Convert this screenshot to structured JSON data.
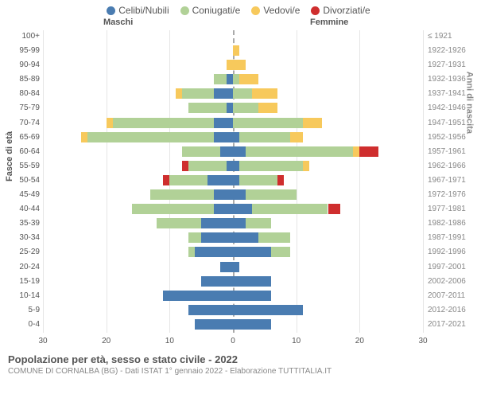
{
  "chart": {
    "type": "population-pyramid",
    "legend": [
      {
        "label": "Celibi/Nubili",
        "color": "#4a7cb1"
      },
      {
        "label": "Coniugati/e",
        "color": "#b1d197"
      },
      {
        "label": "Vedovi/e",
        "color": "#f7c95c"
      },
      {
        "label": "Divorziati/e",
        "color": "#cf2e2e"
      }
    ],
    "top_labels": {
      "left": "Maschi",
      "right": "Femmine"
    },
    "x_axis": {
      "title": "",
      "min": -30,
      "max": 30,
      "ticks": [
        30,
        20,
        10,
        0,
        10,
        20,
        30
      ]
    },
    "y_axis_left_title": "Fasce di età",
    "y_axis_right_title": "Anni di nascita",
    "background_color": "#ffffff",
    "grid_color": "#e5e5e5",
    "center_line_color": "#aaaaaa",
    "rows": [
      {
        "age": "100+",
        "year": "≤ 1921",
        "m": {
          "cel": 0,
          "con": 0,
          "ved": 0,
          "div": 0
        },
        "f": {
          "cel": 0,
          "con": 0,
          "ved": 0,
          "div": 0
        }
      },
      {
        "age": "95-99",
        "year": "1922-1926",
        "m": {
          "cel": 0,
          "con": 0,
          "ved": 0,
          "div": 0
        },
        "f": {
          "cel": 0,
          "con": 0,
          "ved": 1,
          "div": 0
        }
      },
      {
        "age": "90-94",
        "year": "1927-1931",
        "m": {
          "cel": 0,
          "con": 0,
          "ved": 1,
          "div": 0
        },
        "f": {
          "cel": 0,
          "con": 0,
          "ved": 2,
          "div": 0
        }
      },
      {
        "age": "85-89",
        "year": "1932-1936",
        "m": {
          "cel": 1,
          "con": 2,
          "ved": 0,
          "div": 0
        },
        "f": {
          "cel": 0,
          "con": 1,
          "ved": 3,
          "div": 0
        }
      },
      {
        "age": "80-84",
        "year": "1937-1941",
        "m": {
          "cel": 3,
          "con": 5,
          "ved": 1,
          "div": 0
        },
        "f": {
          "cel": 0,
          "con": 3,
          "ved": 4,
          "div": 0
        }
      },
      {
        "age": "75-79",
        "year": "1942-1946",
        "m": {
          "cel": 1,
          "con": 6,
          "ved": 0,
          "div": 0
        },
        "f": {
          "cel": 0,
          "con": 4,
          "ved": 3,
          "div": 0
        }
      },
      {
        "age": "70-74",
        "year": "1947-1951",
        "m": {
          "cel": 3,
          "con": 16,
          "ved": 1,
          "div": 0
        },
        "f": {
          "cel": 0,
          "con": 11,
          "ved": 3,
          "div": 0
        }
      },
      {
        "age": "65-69",
        "year": "1952-1956",
        "m": {
          "cel": 3,
          "con": 20,
          "ved": 1,
          "div": 0
        },
        "f": {
          "cel": 1,
          "con": 8,
          "ved": 2,
          "div": 0
        }
      },
      {
        "age": "60-64",
        "year": "1957-1961",
        "m": {
          "cel": 2,
          "con": 6,
          "ved": 0,
          "div": 0
        },
        "f": {
          "cel": 2,
          "con": 17,
          "ved": 1,
          "div": 3
        }
      },
      {
        "age": "55-59",
        "year": "1962-1966",
        "m": {
          "cel": 1,
          "con": 6,
          "ved": 0,
          "div": 1
        },
        "f": {
          "cel": 1,
          "con": 10,
          "ved": 1,
          "div": 0
        }
      },
      {
        "age": "50-54",
        "year": "1967-1971",
        "m": {
          "cel": 4,
          "con": 6,
          "ved": 0,
          "div": 1
        },
        "f": {
          "cel": 1,
          "con": 6,
          "ved": 0,
          "div": 1
        }
      },
      {
        "age": "45-49",
        "year": "1972-1976",
        "m": {
          "cel": 3,
          "con": 10,
          "ved": 0,
          "div": 0
        },
        "f": {
          "cel": 2,
          "con": 8,
          "ved": 0,
          "div": 0
        }
      },
      {
        "age": "40-44",
        "year": "1977-1981",
        "m": {
          "cel": 3,
          "con": 13,
          "ved": 0,
          "div": 0
        },
        "f": {
          "cel": 3,
          "con": 12,
          "ved": 0,
          "div": 2
        }
      },
      {
        "age": "35-39",
        "year": "1982-1986",
        "m": {
          "cel": 5,
          "con": 7,
          "ved": 0,
          "div": 0
        },
        "f": {
          "cel": 2,
          "con": 4,
          "ved": 0,
          "div": 0
        }
      },
      {
        "age": "30-34",
        "year": "1987-1991",
        "m": {
          "cel": 5,
          "con": 2,
          "ved": 0,
          "div": 0
        },
        "f": {
          "cel": 4,
          "con": 5,
          "ved": 0,
          "div": 0
        }
      },
      {
        "age": "25-29",
        "year": "1992-1996",
        "m": {
          "cel": 6,
          "con": 1,
          "ved": 0,
          "div": 0
        },
        "f": {
          "cel": 6,
          "con": 3,
          "ved": 0,
          "div": 0
        }
      },
      {
        "age": "20-24",
        "year": "1997-2001",
        "m": {
          "cel": 2,
          "con": 0,
          "ved": 0,
          "div": 0
        },
        "f": {
          "cel": 1,
          "con": 0,
          "ved": 0,
          "div": 0
        }
      },
      {
        "age": "15-19",
        "year": "2002-2006",
        "m": {
          "cel": 5,
          "con": 0,
          "ved": 0,
          "div": 0
        },
        "f": {
          "cel": 6,
          "con": 0,
          "ved": 0,
          "div": 0
        }
      },
      {
        "age": "10-14",
        "year": "2007-2011",
        "m": {
          "cel": 11,
          "con": 0,
          "ved": 0,
          "div": 0
        },
        "f": {
          "cel": 6,
          "con": 0,
          "ved": 0,
          "div": 0
        }
      },
      {
        "age": "5-9",
        "year": "2012-2016",
        "m": {
          "cel": 7,
          "con": 0,
          "ved": 0,
          "div": 0
        },
        "f": {
          "cel": 11,
          "con": 0,
          "ved": 0,
          "div": 0
        }
      },
      {
        "age": "0-4",
        "year": "2017-2021",
        "m": {
          "cel": 6,
          "con": 0,
          "ved": 0,
          "div": 0
        },
        "f": {
          "cel": 6,
          "con": 0,
          "ved": 0,
          "div": 0
        }
      }
    ]
  },
  "footer": {
    "title": "Popolazione per età, sesso e stato civile - 2022",
    "subtitle": "COMUNE DI CORNALBA (BG) - Dati ISTAT 1° gennaio 2022 - Elaborazione TUTTITALIA.IT"
  }
}
